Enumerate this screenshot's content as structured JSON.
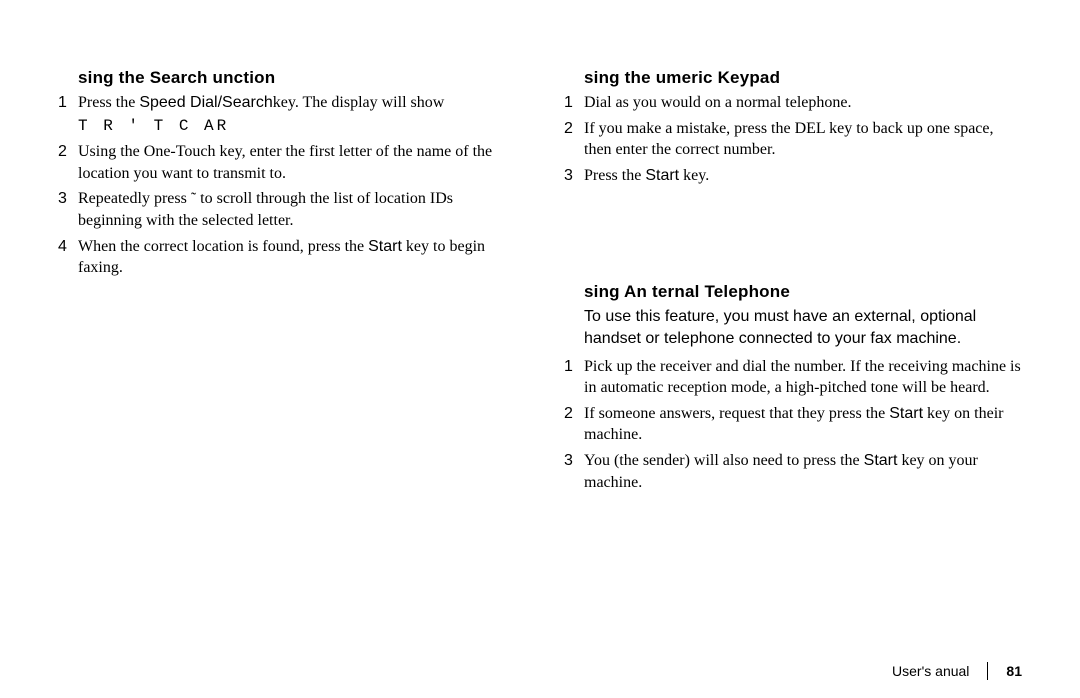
{
  "left": {
    "section1": {
      "heading": "sing the Search   unction",
      "steps": [
        {
          "n": "1",
          "html": "Press the <span class='sans'>Speed Dial/Search</span>key. The display will show<span class='mono'>T R ' T C  AR</span>"
        },
        {
          "n": "2",
          "html": "Using the One-Touch key, enter the first letter of the name of the location you want to transmit to."
        },
        {
          "n": "3",
          "html": "Repeatedly press ˜   to scroll through the list of location IDs beginning with the selected letter."
        },
        {
          "n": "4",
          "html": "When the correct location is found, press the <span class='sans'>Start</span> key to begin faxing."
        }
      ]
    }
  },
  "right": {
    "section1": {
      "heading": "sing the    umeric Keypad",
      "steps": [
        {
          "n": "1",
          "html": "Dial as you would on a normal telephone."
        },
        {
          "n": "2",
          "html": "If you make a mistake, press the DEL key to back up one space, then enter the correct number."
        },
        {
          "n": "3",
          "html": "Press the <span class='sans'>Start</span> key."
        }
      ]
    },
    "section2": {
      "heading": "sing An     ternal Telephone",
      "intro": "To use this feature, you must have an external, optional handset or telephone connected to your fax machine.",
      "steps": [
        {
          "n": "1",
          "html": "Pick up the receiver and dial the number.  If the receiving machine is in automatic reception mode, a high-pitched tone will be heard."
        },
        {
          "n": "2",
          "html": "If someone answers, request that they press the <span class='sans'>Start</span> key on their machine."
        },
        {
          "n": "3",
          "html": "You (the sender) will also need to press the <span class='sans'>Start</span> key on your machine."
        }
      ]
    }
  },
  "footer": {
    "label": "User's   anual",
    "page": "81"
  }
}
